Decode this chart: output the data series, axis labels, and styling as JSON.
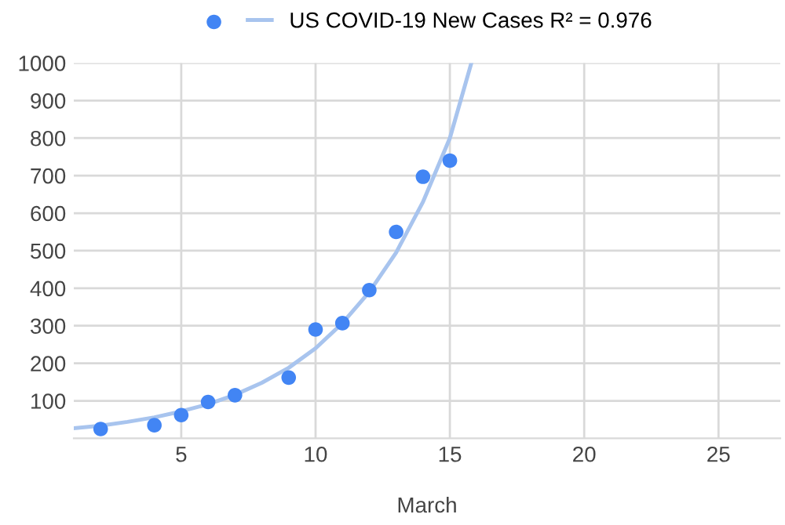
{
  "chart_data": {
    "type": "scatter",
    "xlabel": "March",
    "xlim": [
      1,
      27.3
    ],
    "xticks": [
      5,
      10,
      15,
      20,
      25
    ],
    "ylim": [
      0,
      1000
    ],
    "yticks": [
      100,
      200,
      300,
      400,
      500,
      600,
      700,
      800,
      900,
      1000
    ],
    "grid": true,
    "legend": "top",
    "series": [
      {
        "marker": "circle",
        "color": "#4285f4",
        "x": [
          2,
          4,
          5,
          6,
          7,
          9,
          10,
          11,
          12,
          13,
          14,
          15
        ],
        "values": [
          25,
          35,
          62,
          97,
          115,
          162,
          290,
          307,
          395,
          550,
          697,
          740
        ]
      },
      {
        "type": "line",
        "marker": "none",
        "name": "US COVID-19 New Cases R² = 0.976",
        "color": "#a8c4ee",
        "line_style": "solid",
        "x": [
          1,
          2,
          3,
          4,
          5,
          6,
          7,
          8,
          9,
          10,
          11,
          12,
          13,
          14,
          15,
          15.8
        ],
        "values": [
          27,
          34,
          44,
          56,
          72,
          91,
          116,
          148,
          188,
          240,
          307,
          390,
          495,
          630,
          800,
          1000
        ]
      }
    ]
  }
}
